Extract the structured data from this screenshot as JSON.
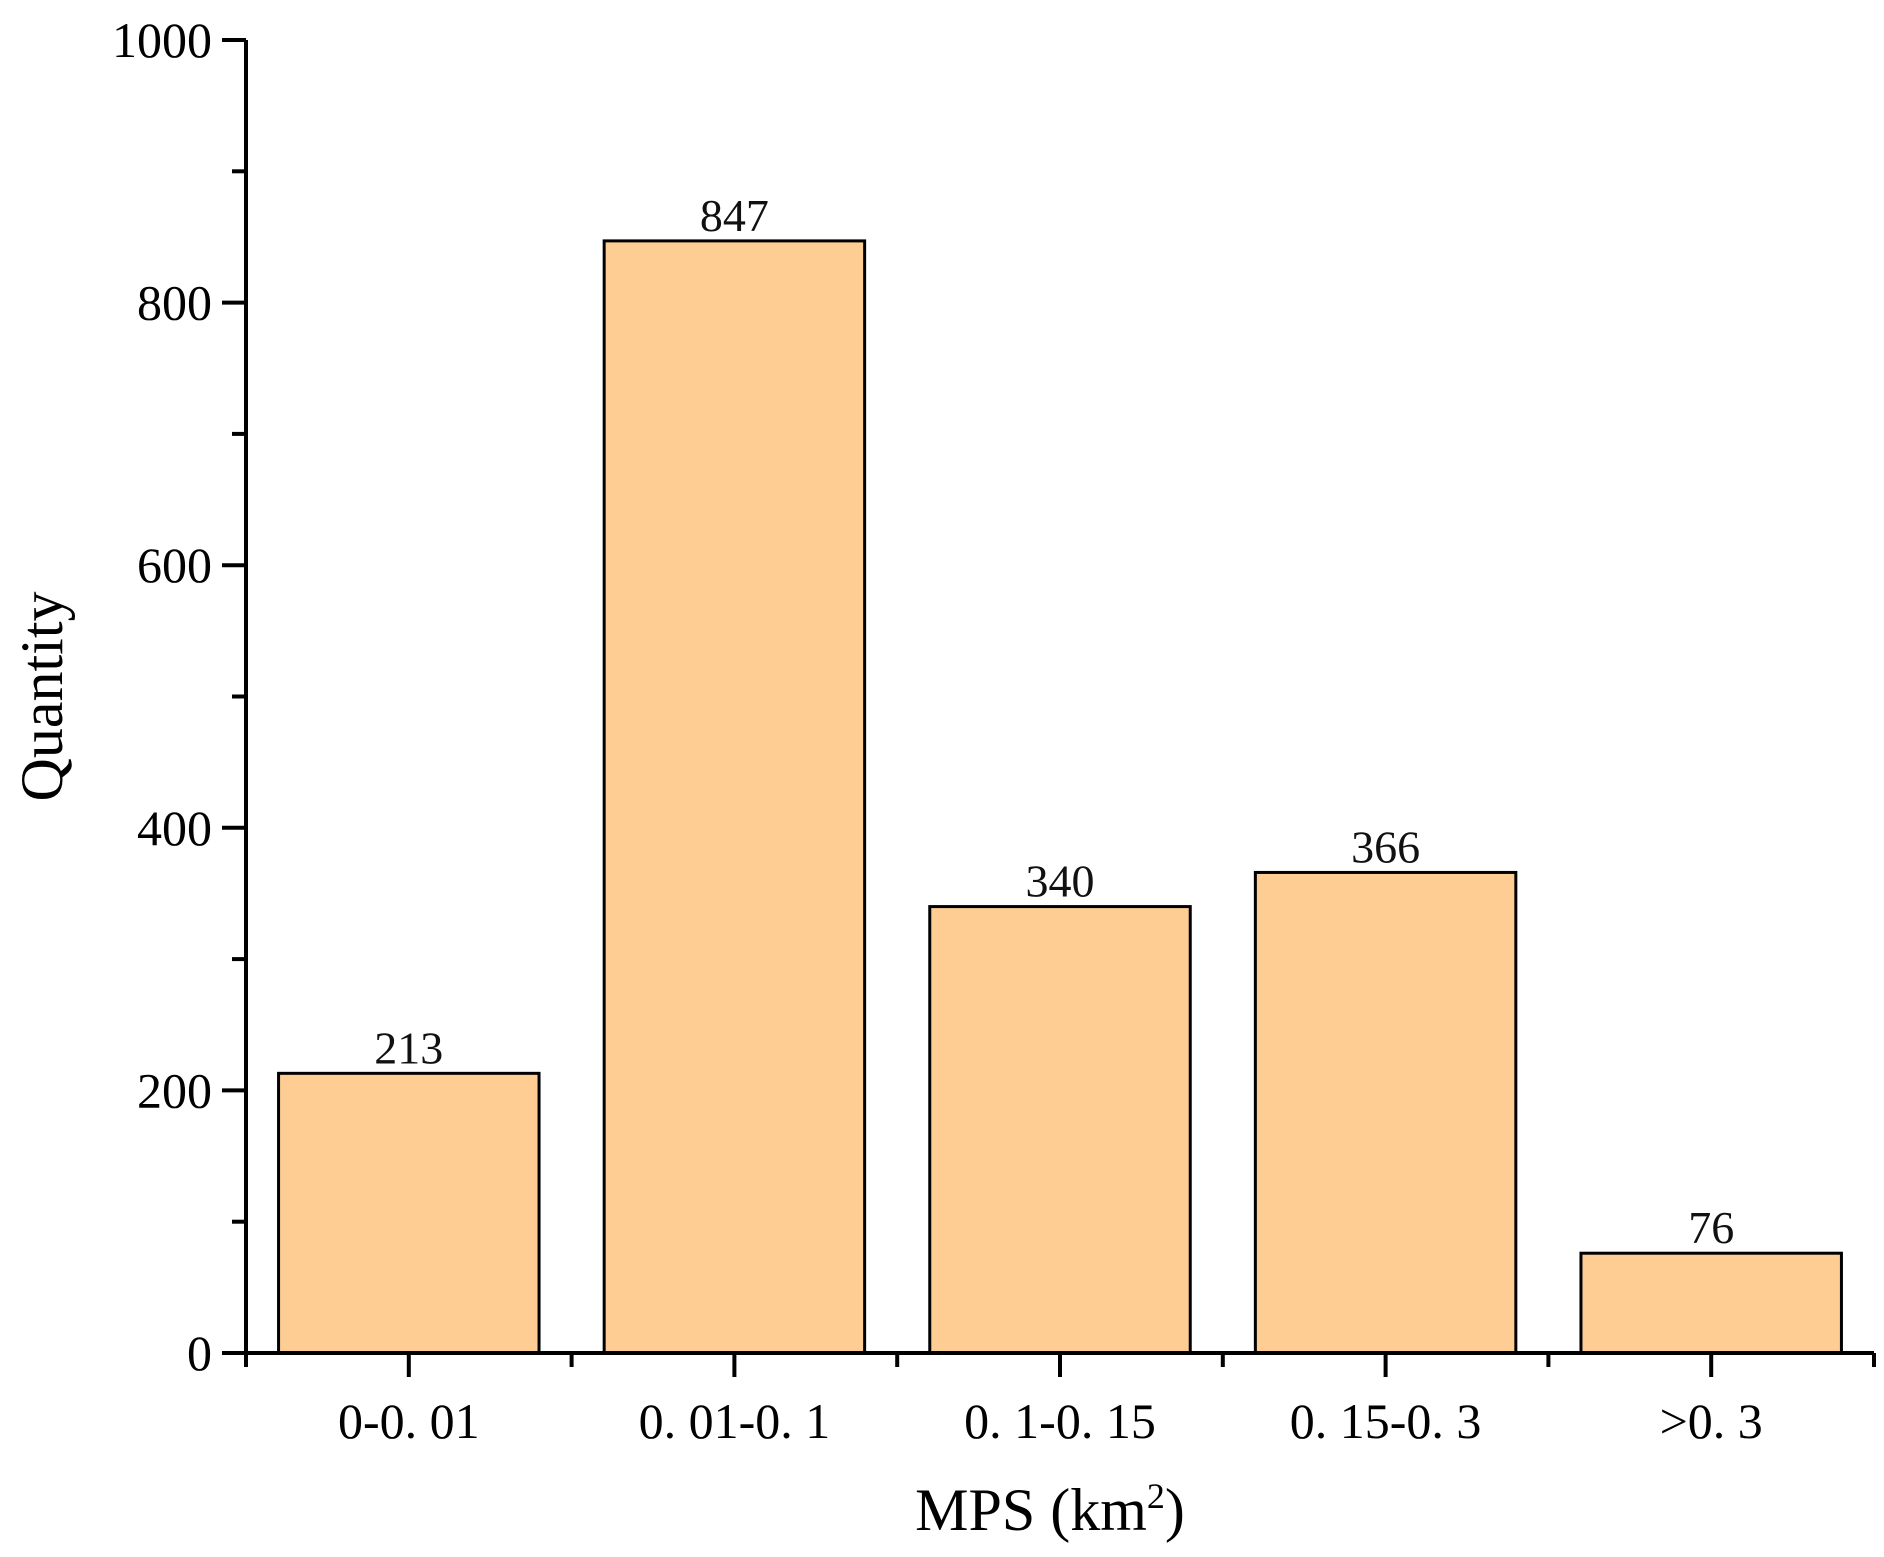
{
  "chart_data": {
    "type": "bar",
    "categories": [
      "0-0. 01",
      "0. 01-0. 1",
      "0. 1-0. 15",
      "0. 15-0. 3",
      ">0. 3"
    ],
    "values": [
      213,
      847,
      340,
      366,
      76
    ],
    "data_labels": [
      "213",
      "847",
      "340",
      "366",
      "76"
    ],
    "xlabel": "MPS (km",
    "xlabel_superscript": "2",
    "xlabel_suffix": ")",
    "ylabel": "Quantity",
    "ylim": [
      0,
      1000
    ],
    "yticks": [
      0,
      200,
      400,
      600,
      800,
      1000
    ],
    "ytick_labels": [
      "0",
      "200",
      "400",
      "600",
      "800",
      "1000"
    ],
    "ytick_minor_step": 100,
    "bar_color": "#FECD94",
    "bar_edge_color": "#000000",
    "grid": false,
    "legend": "none"
  }
}
